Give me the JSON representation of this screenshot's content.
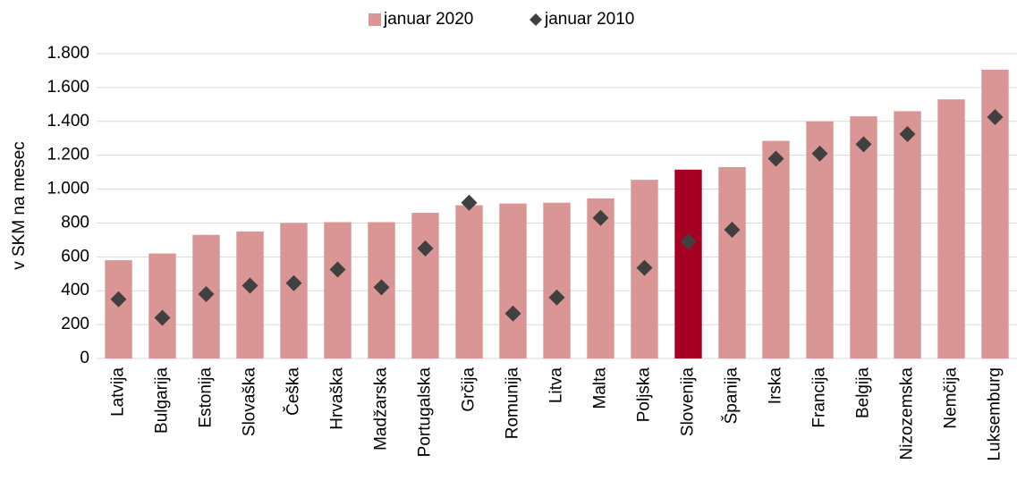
{
  "chart_data": {
    "type": "bar",
    "y_label": "v SKM na mesec",
    "categories": [
      "Latvija",
      "Bulgarija",
      "Estonija",
      "Slovaška",
      "Češka",
      "Hrvaška",
      "Madžarska",
      "Portugalska",
      "Grčija",
      "Romunija",
      "Litva",
      "Malta",
      "Poljska",
      "Slovenija",
      "Španija",
      "Irska",
      "Francija",
      "Belgija",
      "Nizozemska",
      "Nemčija",
      "Luksemburg"
    ],
    "series": [
      {
        "name": "januar 2020",
        "type": "bar",
        "color": "#d99694",
        "colors": [
          "#d99694",
          "#d99694",
          "#d99694",
          "#d99694",
          "#d99694",
          "#d99694",
          "#d99694",
          "#d99694",
          "#d99694",
          "#d99694",
          "#d99694",
          "#d99694",
          "#d99694",
          "#a50021",
          "#d99694",
          "#d99694",
          "#d99694",
          "#d99694",
          "#d99694",
          "#d99694",
          "#d99694"
        ],
        "values": [
          580,
          620,
          730,
          750,
          800,
          805,
          805,
          860,
          905,
          915,
          920,
          945,
          1055,
          1115,
          1130,
          1285,
          1400,
          1430,
          1460,
          1530,
          1705
        ]
      },
      {
        "name": "januar 2010",
        "type": "marker",
        "color": "#404040",
        "values": [
          350,
          240,
          380,
          430,
          445,
          525,
          420,
          650,
          920,
          265,
          360,
          830,
          535,
          690,
          760,
          1180,
          1210,
          1265,
          1325,
          null,
          1425
        ]
      }
    ],
    "ylim": [
      0,
      1800
    ],
    "yticks": [
      0,
      200,
      400,
      600,
      800,
      {
        "value": 1000,
        "label": "1.000"
      },
      {
        "value": 1200,
        "label": "1.200"
      },
      {
        "value": 1400,
        "label": "1.400"
      },
      {
        "value": 1600,
        "label": "1.600"
      },
      {
        "value": 1800,
        "label": "1.800"
      }
    ],
    "grid": true,
    "legend": "top"
  }
}
